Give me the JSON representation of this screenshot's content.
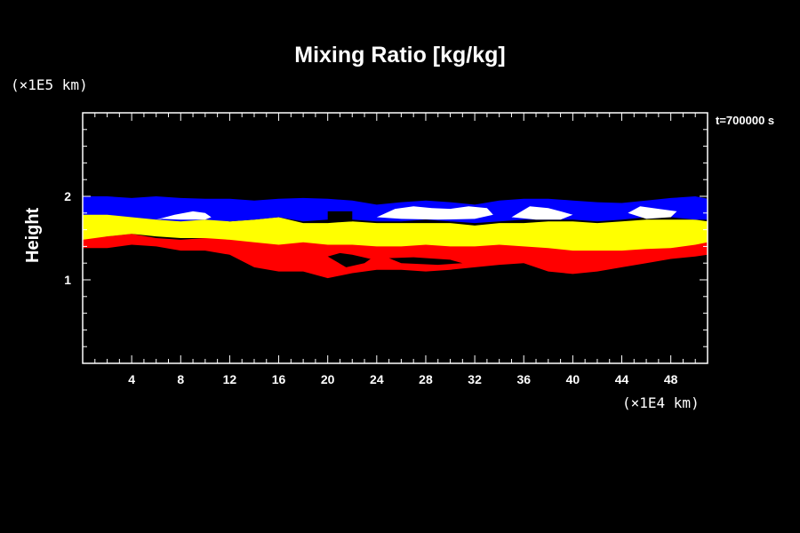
{
  "chart_data": {
    "type": "heatmap",
    "title": "Mixing Ratio [kg/kg]",
    "ylabel": "Height",
    "xlabel": "",
    "x_unit": "(×1E4 km)",
    "y_unit": "(×1E5 km)",
    "time_label": "t=700000 s",
    "xlim": [
      0,
      51
    ],
    "ylim": [
      0,
      3
    ],
    "x_ticks": [
      4,
      8,
      12,
      16,
      20,
      24,
      28,
      32,
      36,
      40,
      44,
      48
    ],
    "y_ticks": [
      1,
      2
    ],
    "x_minor_step": 1,
    "y_minor_step": 0.2,
    "grid": false,
    "bands": [
      {
        "color": "#ff0000",
        "x": [
          0,
          2,
          4,
          6,
          8,
          10,
          12,
          14,
          16,
          18,
          20,
          22,
          24,
          26,
          28,
          30,
          32,
          34,
          36,
          38,
          40,
          42,
          44,
          46,
          48,
          50,
          51
        ],
        "top": [
          1.5,
          1.52,
          1.55,
          1.5,
          1.48,
          1.5,
          1.5,
          1.48,
          1.46,
          1.5,
          1.48,
          1.46,
          1.45,
          1.45,
          1.45,
          1.46,
          1.45,
          1.45,
          1.42,
          1.4,
          1.4,
          1.4,
          1.4,
          1.4,
          1.4,
          1.45,
          1.45
        ],
        "bot": [
          1.38,
          1.38,
          1.42,
          1.4,
          1.35,
          1.35,
          1.3,
          1.15,
          1.1,
          1.1,
          1.02,
          1.08,
          1.12,
          1.12,
          1.1,
          1.12,
          1.15,
          1.18,
          1.2,
          1.1,
          1.07,
          1.1,
          1.15,
          1.2,
          1.25,
          1.28,
          1.3
        ]
      },
      {
        "color": "#ffff00",
        "x": [
          0,
          2,
          4,
          6,
          8,
          10,
          12,
          14,
          16,
          18,
          20,
          22,
          24,
          26,
          28,
          30,
          32,
          34,
          36,
          38,
          40,
          42,
          44,
          46,
          48,
          50,
          51
        ],
        "top": [
          1.8,
          1.8,
          1.78,
          1.75,
          1.72,
          1.75,
          1.7,
          1.72,
          1.75,
          1.68,
          1.68,
          1.7,
          1.68,
          1.68,
          1.68,
          1.68,
          1.65,
          1.68,
          1.68,
          1.7,
          1.7,
          1.68,
          1.7,
          1.72,
          1.72,
          1.72,
          1.7
        ],
        "bot": [
          1.48,
          1.52,
          1.55,
          1.52,
          1.5,
          1.5,
          1.48,
          1.45,
          1.42,
          1.45,
          1.42,
          1.42,
          1.4,
          1.4,
          1.42,
          1.4,
          1.4,
          1.42,
          1.4,
          1.38,
          1.35,
          1.35,
          1.35,
          1.37,
          1.38,
          1.42,
          1.45
        ]
      },
      {
        "color": "#0000ff",
        "x": [
          0,
          2,
          4,
          6,
          8,
          10,
          12,
          14,
          16,
          18,
          20,
          22,
          24,
          26,
          28,
          30,
          32,
          34,
          36,
          38,
          40,
          42,
          44,
          46,
          48,
          50,
          51
        ],
        "top": [
          2.0,
          2.0,
          1.98,
          2.0,
          1.98,
          1.97,
          1.97,
          1.95,
          1.97,
          1.98,
          1.97,
          1.95,
          1.9,
          1.93,
          1.95,
          1.93,
          1.9,
          1.95,
          1.97,
          1.97,
          1.95,
          1.93,
          1.92,
          1.95,
          1.98,
          2.0,
          1.97
        ],
        "bot": [
          1.78,
          1.78,
          1.75,
          1.72,
          1.7,
          1.72,
          1.7,
          1.72,
          1.75,
          1.7,
          1.72,
          1.72,
          1.7,
          1.7,
          1.72,
          1.7,
          1.68,
          1.7,
          1.72,
          1.72,
          1.72,
          1.7,
          1.72,
          1.75,
          1.75,
          1.72,
          1.72
        ]
      }
    ],
    "patches": [
      {
        "color": "#000000",
        "x": [
          20,
          22,
          22,
          20
        ],
        "y": [
          1.82,
          1.82,
          1.7,
          1.7
        ]
      },
      {
        "color": "#ffffff",
        "x": [
          6,
          7.5,
          9,
          10,
          10.5,
          10,
          8,
          6.5,
          6
        ],
        "y": [
          1.72,
          1.78,
          1.82,
          1.8,
          1.75,
          1.72,
          1.72,
          1.73,
          1.72
        ]
      },
      {
        "color": "#ffffff",
        "x": [
          24,
          25.5,
          27,
          28.5,
          30,
          31.5,
          33,
          33.5,
          32,
          29,
          26,
          24
        ],
        "y": [
          1.75,
          1.85,
          1.88,
          1.86,
          1.85,
          1.88,
          1.86,
          1.78,
          1.73,
          1.72,
          1.73,
          1.75
        ]
      },
      {
        "color": "#ffffff",
        "x": [
          35,
          36.5,
          38,
          39,
          40,
          39,
          37,
          35
        ],
        "y": [
          1.75,
          1.88,
          1.86,
          1.82,
          1.78,
          1.72,
          1.72,
          1.75
        ]
      },
      {
        "color": "#ffffff",
        "x": [
          44.5,
          45.5,
          47,
          48.5,
          48,
          46,
          44.5
        ],
        "y": [
          1.8,
          1.88,
          1.85,
          1.82,
          1.75,
          1.73,
          1.8
        ]
      },
      {
        "color": "#000000",
        "x": [
          20,
          21,
          22,
          23.5,
          23,
          21.5,
          20
        ],
        "y": [
          1.28,
          1.32,
          1.3,
          1.25,
          1.2,
          1.15,
          1.28
        ]
      },
      {
        "color": "#000000",
        "x": [
          25,
          27,
          30,
          31,
          29,
          26,
          25
        ],
        "y": [
          1.26,
          1.27,
          1.24,
          1.2,
          1.18,
          1.2,
          1.26
        ]
      }
    ]
  }
}
